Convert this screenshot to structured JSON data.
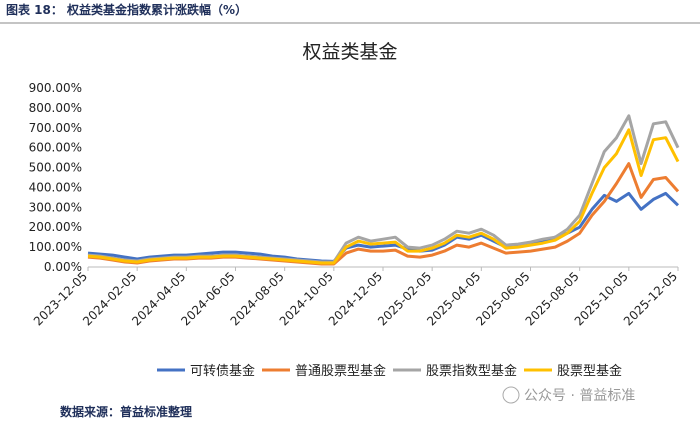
{
  "header": {
    "title": "图表 18：  权益类基金指数累计涨跌幅（%）"
  },
  "chart_data": {
    "type": "line",
    "title": "权益类基金",
    "categories": [
      "2023-12-05",
      null,
      null,
      null,
      "2024-02-05",
      null,
      null,
      null,
      "2024-04-05",
      null,
      null,
      null,
      "2024-06-05",
      null,
      null,
      null,
      "2024-08-05",
      null,
      null,
      null,
      "2024-10-05",
      null,
      null,
      null,
      "2024-12-05",
      null,
      null,
      null,
      "2025-02-05",
      null,
      null,
      null,
      "2025-04-05",
      null,
      null,
      null,
      "2025-06-05",
      null,
      null,
      null,
      "2025-08-05",
      null,
      null,
      null,
      "2025-10-05",
      null,
      null,
      null,
      "2025-12-05"
    ],
    "series": [
      {
        "name": "可转债基金",
        "color": "#4472c4",
        "values": [
          70,
          65,
          60,
          50,
          40,
          50,
          55,
          60,
          60,
          65,
          70,
          75,
          75,
          70,
          65,
          55,
          50,
          40,
          35,
          30,
          28,
          95,
          110,
          100,
          105,
          110,
          90,
          80,
          85,
          110,
          150,
          140,
          160,
          130,
          100,
          105,
          115,
          125,
          150,
          170,
          200,
          290,
          360,
          330,
          370,
          290,
          340,
          370,
          310
        ]
      },
      {
        "name": "普通股票型基金",
        "color": "#ed7d31",
        "values": [
          50,
          45,
          35,
          25,
          20,
          30,
          35,
          40,
          40,
          45,
          45,
          50,
          50,
          45,
          40,
          35,
          30,
          25,
          20,
          15,
          15,
          70,
          90,
          80,
          80,
          85,
          55,
          50,
          60,
          80,
          110,
          100,
          120,
          95,
          70,
          75,
          80,
          90,
          100,
          130,
          170,
          260,
          330,
          420,
          520,
          350,
          440,
          450,
          380
        ]
      },
      {
        "name": "股票指数型基金",
        "color": "#a5a5a5",
        "values": [
          60,
          55,
          45,
          35,
          30,
          40,
          45,
          50,
          50,
          55,
          55,
          60,
          60,
          55,
          50,
          45,
          40,
          35,
          30,
          25,
          25,
          120,
          150,
          130,
          140,
          150,
          100,
          95,
          110,
          140,
          180,
          170,
          190,
          160,
          110,
          115,
          125,
          140,
          150,
          190,
          260,
          420,
          580,
          650,
          760,
          520,
          720,
          730,
          600
        ]
      },
      {
        "name": "股票型基金",
        "color": "#ffc000",
        "values": [
          55,
          50,
          40,
          30,
          25,
          35,
          40,
          45,
          45,
          50,
          50,
          55,
          55,
          50,
          45,
          40,
          35,
          30,
          25,
          20,
          20,
          100,
          130,
          115,
          120,
          125,
          80,
          80,
          95,
          120,
          160,
          150,
          170,
          140,
          95,
          100,
          110,
          120,
          135,
          170,
          230,
          370,
          500,
          570,
          690,
          460,
          640,
          650,
          530
        ]
      }
    ],
    "ylim": [
      0,
      900
    ],
    "yticks": [
      {
        "value": 0,
        "label": "0.00%"
      },
      {
        "value": 100,
        "label": "100.00%"
      },
      {
        "value": 200,
        "label": "200.00%"
      },
      {
        "value": 300,
        "label": "300.00%"
      },
      {
        "value": 400,
        "label": "400.00%"
      },
      {
        "value": 500,
        "label": "500.00%"
      },
      {
        "value": 600,
        "label": "600.00%"
      },
      {
        "value": 700,
        "label": "700.00%"
      },
      {
        "value": 800,
        "label": "800.00%"
      },
      {
        "value": 900,
        "label": "900.00%"
      }
    ],
    "grid": false,
    "legend": "bottom"
  },
  "watermark": "公众号 · 普益标准",
  "footer": {
    "source": "数据来源：普益标准整理"
  }
}
